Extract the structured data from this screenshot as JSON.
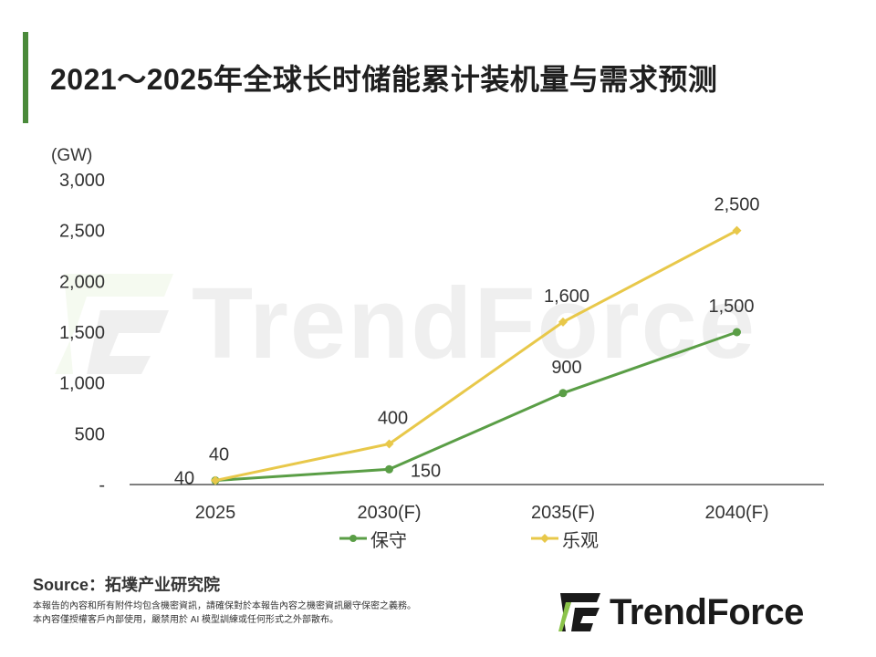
{
  "title": "2021～2025年全球长时储能累计装机量与需求预测",
  "unit_label": "(GW)",
  "chart_data": {
    "type": "line",
    "categories": [
      "2025",
      "2030(F)",
      "2035(F)",
      "2040(F)"
    ],
    "y_ticks": [
      "-",
      "500",
      "1,000",
      "1,500",
      "2,000",
      "2,500",
      "3,000"
    ],
    "ylim": [
      0,
      3000
    ],
    "ylabel": "(GW)",
    "grid": false,
    "legend_position": "bottom",
    "series": [
      {
        "name": "保守",
        "color": "#5a9e46",
        "marker": "circle",
        "values": [
          40,
          150,
          900,
          1500
        ],
        "labels": [
          "40",
          "150",
          "900",
          "1,500"
        ]
      },
      {
        "name": "乐观",
        "color": "#e8c84a",
        "marker": "diamond",
        "values": [
          40,
          400,
          1600,
          2500
        ],
        "labels": [
          "40",
          "400",
          "1,600",
          "2,500"
        ]
      }
    ]
  },
  "source": "Source：拓墣产业研究院",
  "disclaimer": {
    "line1": "本報告的內容和所有附件均包含機密資訊，請確保對於本報告內容之機密資訊嚴守保密之義務。",
    "line2": "本內容僅授權客戶內部使用，嚴禁用於 AI 模型訓練或任何形式之外部散布。"
  },
  "logo": {
    "text": "TrendForce"
  },
  "watermark": {
    "text": "TrendForce"
  },
  "colors": {
    "accent": "#4a8a3a"
  }
}
